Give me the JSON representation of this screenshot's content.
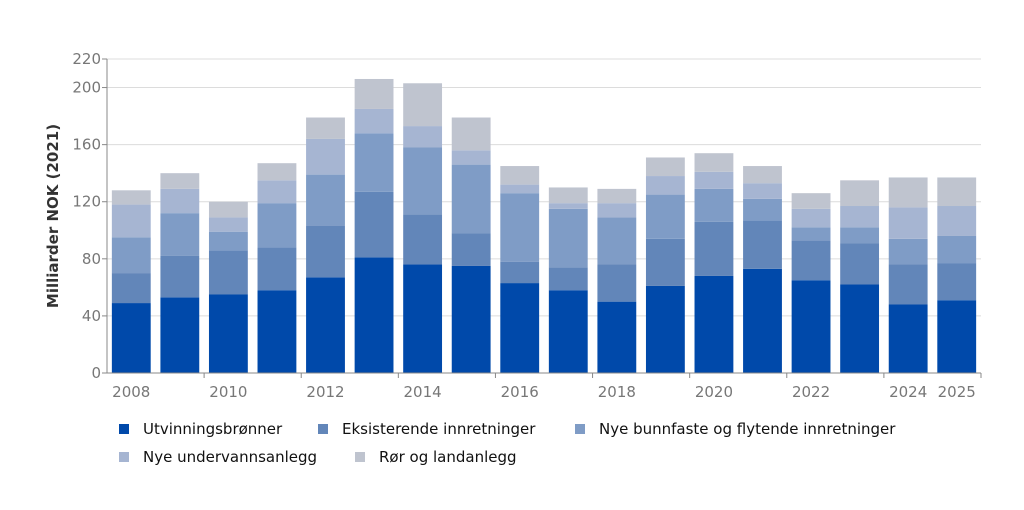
{
  "chart_data": {
    "type": "bar",
    "stacked": true,
    "title": "",
    "xlabel": "",
    "ylabel": "Milliarder NOK (2021)",
    "ylim": [
      0,
      220
    ],
    "yticks": [
      0,
      40,
      80,
      120,
      160,
      200,
      220
    ],
    "grid": true,
    "legend_position": "bottom",
    "categories": [
      "2008",
      "2009",
      "2010",
      "2011",
      "2012",
      "2013",
      "2014",
      "2015",
      "2016",
      "2017",
      "2018",
      "2019",
      "2020",
      "2021",
      "2022",
      "2023",
      "2024",
      "2025"
    ],
    "xtick_labels": [
      "2008",
      "2010",
      "2012",
      "2014",
      "2016",
      "2018",
      "2020",
      "2022",
      "2024",
      "2025"
    ],
    "series": [
      {
        "name": "Utvinningsbrønner",
        "color": "#0049aa",
        "values": [
          49,
          53,
          55,
          58,
          67,
          81,
          76,
          75,
          63,
          58,
          50,
          61,
          68,
          73,
          65,
          62,
          48,
          51
        ]
      },
      {
        "name": "Eksisterende innretninger",
        "color": "#6286b9",
        "values": [
          21,
          29,
          31,
          30,
          36,
          46,
          35,
          23,
          15,
          16,
          26,
          33,
          38,
          34,
          28,
          29,
          28,
          26
        ]
      },
      {
        "name": "Nye bunnfaste og flytende innretninger",
        "color": "#7f9cc6",
        "values": [
          25,
          30,
          13,
          31,
          36,
          41,
          47,
          48,
          48,
          41,
          33,
          31,
          23,
          15,
          9,
          11,
          18,
          19
        ]
      },
      {
        "name": "Nye undervannsanlegg",
        "color": "#a6b5d2",
        "values": [
          23,
          17,
          10,
          16,
          25,
          17,
          15,
          10,
          6,
          4,
          10,
          13,
          12,
          11,
          13,
          15,
          22,
          21
        ]
      },
      {
        "name": "Rør og landanlegg",
        "color": "#bfc4cf",
        "values": [
          10,
          11,
          11,
          12,
          15,
          21,
          30,
          23,
          13,
          11,
          10,
          13,
          13,
          12,
          11,
          18,
          21,
          20
        ]
      }
    ]
  }
}
